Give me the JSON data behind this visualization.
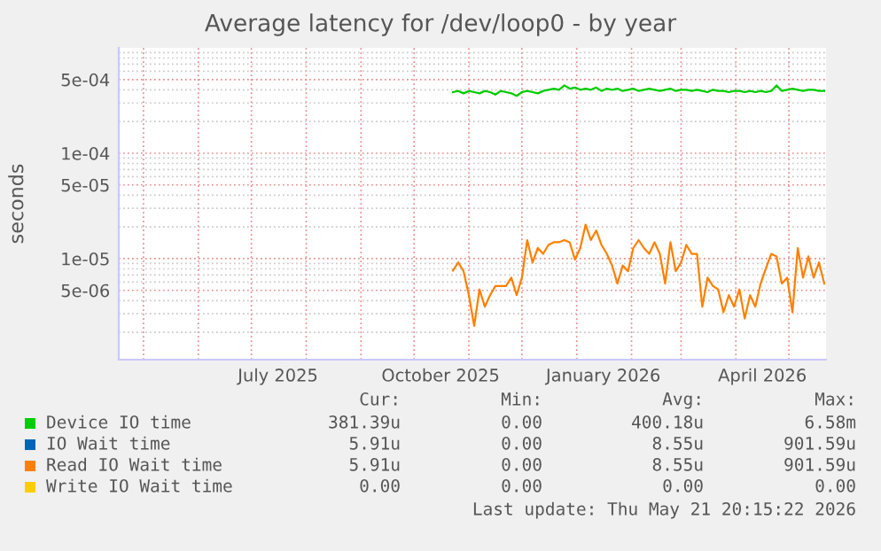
{
  "chart_data": {
    "type": "line",
    "title": "Average latency for /dev/loop0 - by year",
    "ylabel": "seconds",
    "log": "y",
    "grid": true,
    "legend": "bottom",
    "xlim": [
      "2025-04-17",
      "2026-05-22"
    ],
    "ylim": [
      1.1e-06,
      0.001
    ],
    "yticks": [
      {
        "value": 5e-06,
        "label": "5e-06"
      },
      {
        "value": 1e-05,
        "label": "1e-05"
      },
      {
        "value": 5e-05,
        "label": "5e-05"
      },
      {
        "value": 0.0001,
        "label": "1e-04"
      },
      {
        "value": 0.0005,
        "label": "5e-04"
      }
    ],
    "xticks": [
      {
        "value": "2025-05-01",
        "label": null
      },
      {
        "value": "2025-06-01",
        "label": null
      },
      {
        "value": "2025-07-01",
        "label": null
      },
      {
        "value": "2025-08-01",
        "label": null
      },
      {
        "value": "2025-09-01",
        "label": null
      },
      {
        "value": "2025-10-01",
        "label": null
      },
      {
        "value": "2025-11-01",
        "label": null
      },
      {
        "value": "2025-12-01",
        "label": null
      },
      {
        "value": "2026-01-01",
        "label": null
      },
      {
        "value": "2026-02-01",
        "label": null
      },
      {
        "value": "2026-03-01",
        "label": null
      },
      {
        "value": "2026-04-01",
        "label": null
      },
      {
        "value": "2026-05-01",
        "label": null
      },
      {
        "value": "2025-07-16",
        "label": "July 2025"
      },
      {
        "value": "2025-10-16",
        "label": "October 2025"
      },
      {
        "value": "2026-01-16",
        "label": "January 2026"
      },
      {
        "value": "2026-04-16",
        "label": "April 2026"
      }
    ],
    "x": [
      "2025-10-23",
      "2025-10-26",
      "2025-10-29",
      "2025-11-01",
      "2025-11-04",
      "2025-11-07",
      "2025-11-10",
      "2025-11-13",
      "2025-11-16",
      "2025-11-19",
      "2025-11-22",
      "2025-11-25",
      "2025-11-28",
      "2025-12-01",
      "2025-12-04",
      "2025-12-07",
      "2025-12-10",
      "2025-12-13",
      "2025-12-16",
      "2025-12-19",
      "2025-12-22",
      "2025-12-25",
      "2025-12-28",
      "2025-12-31",
      "2026-01-03",
      "2026-01-06",
      "2026-01-09",
      "2026-01-12",
      "2026-01-15",
      "2026-01-18",
      "2026-01-21",
      "2026-01-24",
      "2026-01-27",
      "2026-01-30",
      "2026-02-02",
      "2026-02-05",
      "2026-02-08",
      "2026-02-11",
      "2026-02-14",
      "2026-02-17",
      "2026-02-20",
      "2026-02-23",
      "2026-02-26",
      "2026-03-01",
      "2026-03-04",
      "2026-03-07",
      "2026-03-10",
      "2026-03-13",
      "2026-03-16",
      "2026-03-19",
      "2026-03-22",
      "2026-03-25",
      "2026-03-28",
      "2026-03-31",
      "2026-04-03",
      "2026-04-06",
      "2026-04-09",
      "2026-04-12",
      "2026-04-15",
      "2026-04-18",
      "2026-04-21",
      "2026-04-24",
      "2026-04-27",
      "2026-04-30",
      "2026-05-03",
      "2026-05-06",
      "2026-05-09",
      "2026-05-12",
      "2026-05-15",
      "2026-05-18",
      "2026-05-21"
    ],
    "series": [
      {
        "name": "Device IO time",
        "color": "#00cc00",
        "values": [
          0.00038,
          0.00039,
          0.00037,
          0.00039,
          0.00038,
          0.00037,
          0.00039,
          0.00038,
          0.00036,
          0.00039,
          0.00038,
          0.00037,
          0.00035,
          0.00038,
          0.00039,
          0.00038,
          0.00037,
          0.00039,
          0.0004,
          0.00041,
          0.0004,
          0.00044,
          0.00041,
          0.00042,
          0.0004,
          0.00041,
          0.0004,
          0.00042,
          0.00039,
          0.00041,
          0.0004,
          0.00041,
          0.00039,
          0.0004,
          0.00041,
          0.00039,
          0.0004,
          0.00041,
          0.0004,
          0.00039,
          0.0004,
          0.00041,
          0.00039,
          0.0004,
          0.0004,
          0.00039,
          0.0004,
          0.00039,
          0.00038,
          0.0004,
          0.00039,
          0.00039,
          0.00038,
          0.00039,
          0.00039,
          0.00038,
          0.00039,
          0.00038,
          0.00039,
          0.00038,
          0.00039,
          0.00044,
          0.00039,
          0.0004,
          0.00041,
          0.0004,
          0.00039,
          0.0004,
          0.0004,
          0.00039,
          0.00039
        ]
      },
      {
        "name": "IO Wait time",
        "color": "#0066b3",
        "values": [
          null,
          null,
          null,
          null,
          null,
          null,
          null,
          null,
          null,
          null,
          null,
          null,
          null,
          null,
          null,
          null,
          null,
          null,
          null,
          null,
          null,
          null,
          null,
          null,
          null,
          null,
          null,
          null,
          null,
          null,
          null,
          null,
          null,
          null,
          null,
          null,
          null,
          null,
          null,
          null,
          null,
          null,
          null,
          null,
          null,
          null,
          null,
          null,
          null,
          null,
          null,
          null,
          null,
          null,
          null,
          null,
          null,
          null,
          null,
          null,
          null,
          null,
          null,
          null,
          null,
          null,
          null,
          null,
          null,
          null,
          null
        ]
      },
      {
        "name": "Read IO Wait time",
        "color": "#ff8000",
        "values": [
          7.7e-06,
          9.2e-06,
          7.6e-06,
          4.5e-06,
          2.3e-06,
          5.1e-06,
          3.5e-06,
          4.5e-06,
          5.5e-06,
          5.5e-06,
          5.5e-06,
          6.6e-06,
          4.5e-06,
          6.6e-06,
          1.5e-05,
          9.2e-06,
          1.26e-05,
          1.11e-05,
          1.35e-05,
          1.43e-05,
          1.43e-05,
          1.5e-05,
          1.43e-05,
          9.8e-06,
          1.26e-05,
          2.1e-05,
          1.5e-05,
          1.85e-05,
          1.35e-05,
          1.11e-05,
          8.6e-06,
          5.8e-06,
          8.6e-06,
          7.6e-06,
          1.26e-05,
          1.5e-05,
          1.26e-05,
          1.11e-05,
          1.43e-05,
          1.11e-05,
          5.8e-06,
          1.43e-05,
          7.6e-06,
          9.2e-06,
          1.35e-05,
          1.11e-05,
          1.11e-05,
          3.5e-06,
          6.6e-06,
          5.5e-06,
          5.1e-06,
          3.1e-06,
          4.5e-06,
          3.5e-06,
          5.1e-06,
          2.7e-06,
          4.5e-06,
          3.5e-06,
          5.8e-06,
          8.1e-06,
          1.11e-05,
          1.05e-05,
          5.8e-06,
          6.6e-06,
          3.1e-06,
          1.26e-05,
          6.6e-06,
          1.05e-05,
          6.6e-06,
          9.2e-06,
          5.8e-06
        ]
      },
      {
        "name": "Write IO Wait time",
        "color": "#ffcc00",
        "values": [
          null,
          null,
          null,
          null,
          null,
          null,
          null,
          null,
          null,
          null,
          null,
          null,
          null,
          null,
          null,
          null,
          null,
          null,
          null,
          null,
          null,
          null,
          null,
          null,
          null,
          null,
          null,
          null,
          null,
          null,
          null,
          null,
          null,
          null,
          null,
          null,
          null,
          null,
          null,
          null,
          null,
          null,
          null,
          null,
          null,
          null,
          null,
          null,
          null,
          null,
          null,
          null,
          null,
          null,
          null,
          null,
          null,
          null,
          null,
          null,
          null,
          null,
          null,
          null,
          null,
          null,
          null,
          null,
          null,
          null,
          null
        ]
      }
    ],
    "annotations": [
      "Cur:",
      "Min:",
      "Avg:",
      "Max:",
      "381.39u",
      "0.00",
      "400.18u",
      "6.58m",
      "5.91u",
      "0.00",
      "8.55u",
      "901.59u",
      "5.91u",
      "0.00",
      "8.55u",
      "901.59u",
      "0.00",
      "0.00",
      "0.00",
      "0.00",
      "Last update: Thu May 21 20:15:22 2026"
    ]
  }
}
